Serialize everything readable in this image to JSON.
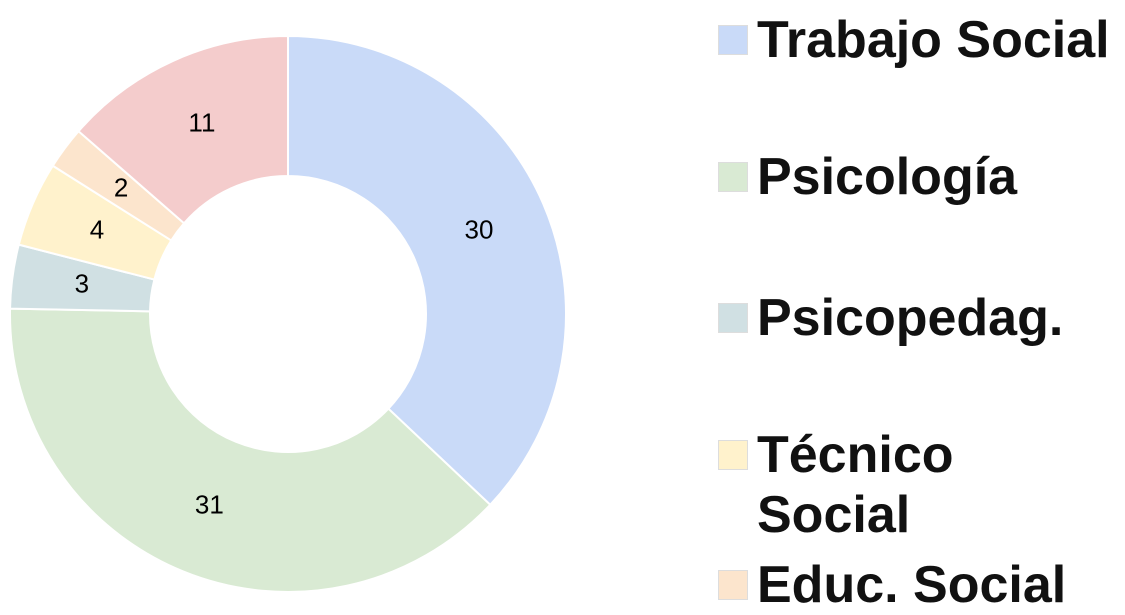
{
  "chart_data": {
    "type": "donut",
    "categories": [
      "Trabajo Social",
      "Psicología",
      "Psicopedag.",
      "Técnico Social",
      "Educ. Social",
      null
    ],
    "values": [
      30,
      31,
      3,
      4,
      2,
      11
    ],
    "colors": [
      "#c9daf8",
      "#d9ead3",
      "#d0e0e3",
      "#fff2cc",
      "#fce5cd",
      "#f4cccc"
    ],
    "legend": "right"
  }
}
